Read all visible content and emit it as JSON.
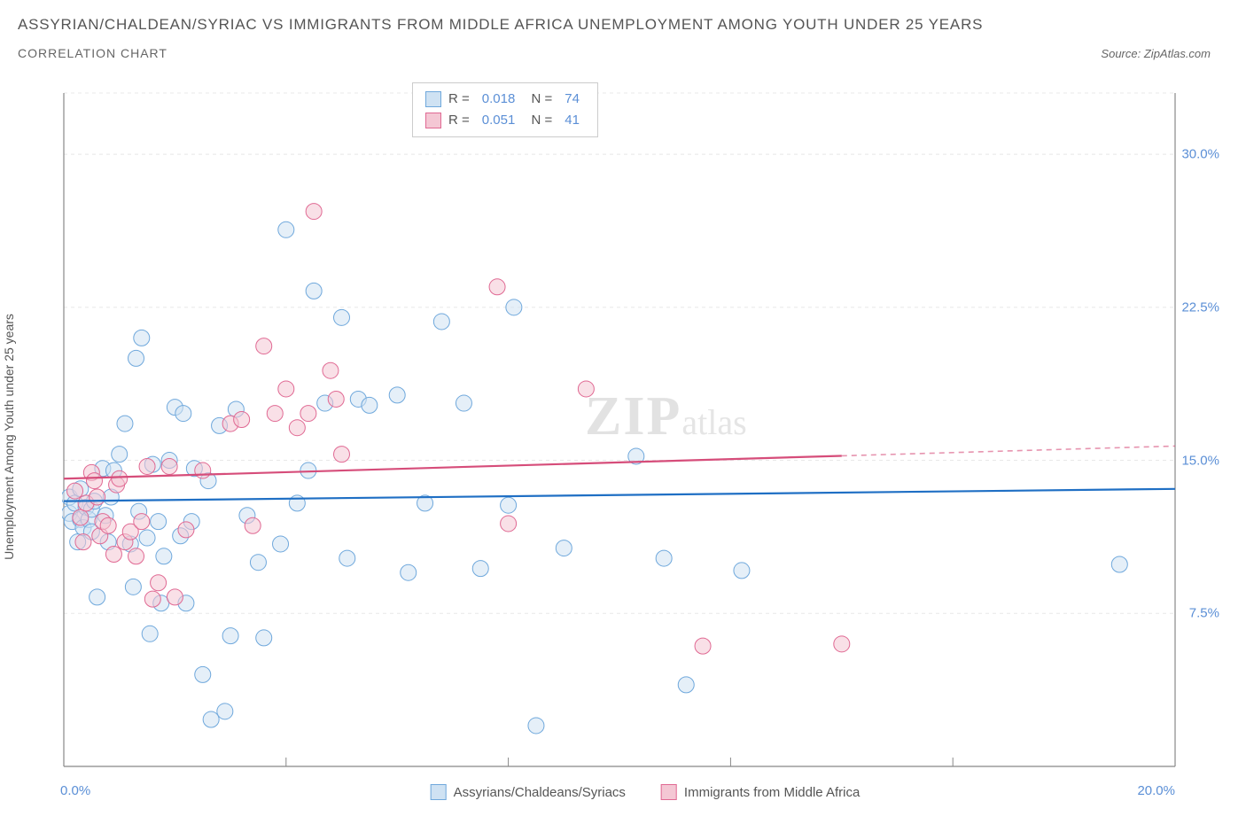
{
  "header": {
    "title": "ASSYRIAN/CHALDEAN/SYRIAC VS IMMIGRANTS FROM MIDDLE AFRICA UNEMPLOYMENT AMONG YOUTH UNDER 25 YEARS",
    "subtitle": "CORRELATION CHART",
    "source_label": "Source:",
    "source_value": "ZipAtlas.com"
  },
  "chart": {
    "type": "scatter",
    "y_axis_label": "Unemployment Among Youth under 25 years",
    "xlim": [
      0,
      20
    ],
    "ylim": [
      0,
      33
    ],
    "x_ticks": [
      {
        "pos": 0,
        "label": "0.0%"
      },
      {
        "pos": 20,
        "label": "20.0%"
      }
    ],
    "x_minor_ticks": [
      4,
      8,
      12,
      16
    ],
    "y_ticks": [
      {
        "pos": 7.5,
        "label": "7.5%"
      },
      {
        "pos": 15,
        "label": "15.0%"
      },
      {
        "pos": 22.5,
        "label": "22.5%"
      },
      {
        "pos": 30,
        "label": "30.0%"
      }
    ],
    "background_color": "#ffffff",
    "grid_color": "#e8e8e8",
    "axis_color": "#888888",
    "marker_radius": 9,
    "marker_stroke_width": 1,
    "series": [
      {
        "name": "Assyrians/Chaldeans/Syriacs",
        "fill": "#cfe2f3",
        "fill_opacity": 0.55,
        "stroke": "#6fa8dc",
        "line_color": "#1f6fc4",
        "R": "0.018",
        "N": "74",
        "trend": {
          "x1": 0,
          "y1": 13.0,
          "x2": 20,
          "y2": 13.6,
          "solid_to_x": 20
        },
        "points": [
          [
            0.1,
            13.2
          ],
          [
            0.1,
            12.4
          ],
          [
            0.15,
            12.0
          ],
          [
            0.2,
            12.9
          ],
          [
            0.25,
            11.0
          ],
          [
            0.3,
            12.1
          ],
          [
            0.3,
            13.6
          ],
          [
            0.35,
            11.7
          ],
          [
            0.4,
            12.7
          ],
          [
            0.45,
            12.1
          ],
          [
            0.5,
            11.5
          ],
          [
            0.5,
            12.6
          ],
          [
            0.55,
            13.0
          ],
          [
            0.6,
            8.3
          ],
          [
            0.7,
            14.6
          ],
          [
            0.75,
            12.3
          ],
          [
            0.8,
            11.0
          ],
          [
            0.85,
            13.2
          ],
          [
            0.9,
            14.5
          ],
          [
            1.0,
            15.3
          ],
          [
            1.1,
            16.8
          ],
          [
            1.2,
            10.9
          ],
          [
            1.25,
            8.8
          ],
          [
            1.3,
            20.0
          ],
          [
            1.35,
            12.5
          ],
          [
            1.4,
            21.0
          ],
          [
            1.5,
            11.2
          ],
          [
            1.55,
            6.5
          ],
          [
            1.6,
            14.8
          ],
          [
            1.7,
            12.0
          ],
          [
            1.75,
            8.0
          ],
          [
            1.8,
            10.3
          ],
          [
            1.9,
            15.0
          ],
          [
            2.0,
            17.6
          ],
          [
            2.1,
            11.3
          ],
          [
            2.15,
            17.3
          ],
          [
            2.2,
            8.0
          ],
          [
            2.3,
            12.0
          ],
          [
            2.35,
            14.6
          ],
          [
            2.5,
            4.5
          ],
          [
            2.6,
            14.0
          ],
          [
            2.65,
            2.3
          ],
          [
            2.8,
            16.7
          ],
          [
            2.9,
            2.7
          ],
          [
            3.0,
            6.4
          ],
          [
            3.1,
            17.5
          ],
          [
            3.3,
            12.3
          ],
          [
            3.5,
            10.0
          ],
          [
            3.6,
            6.3
          ],
          [
            3.9,
            10.9
          ],
          [
            4.0,
            26.3
          ],
          [
            4.2,
            12.9
          ],
          [
            4.4,
            14.5
          ],
          [
            4.5,
            23.3
          ],
          [
            4.7,
            17.8
          ],
          [
            5.0,
            22.0
          ],
          [
            5.1,
            10.2
          ],
          [
            5.3,
            18.0
          ],
          [
            5.5,
            17.7
          ],
          [
            6.0,
            18.2
          ],
          [
            6.2,
            9.5
          ],
          [
            6.5,
            12.9
          ],
          [
            6.8,
            21.8
          ],
          [
            7.2,
            17.8
          ],
          [
            7.5,
            9.7
          ],
          [
            8.0,
            12.8
          ],
          [
            8.1,
            22.5
          ],
          [
            8.5,
            2.0
          ],
          [
            9.0,
            10.7
          ],
          [
            10.3,
            15.2
          ],
          [
            10.8,
            10.2
          ],
          [
            11.2,
            4.0
          ],
          [
            12.2,
            9.6
          ],
          [
            19.0,
            9.9
          ]
        ]
      },
      {
        "name": "Immigrants from Middle Africa",
        "fill": "#f4c7d4",
        "fill_opacity": 0.55,
        "stroke": "#e06993",
        "line_color": "#d64d7a",
        "R": "0.051",
        "N": "41",
        "trend": {
          "x1": 0,
          "y1": 14.1,
          "x2": 20,
          "y2": 15.7,
          "solid_to_x": 14
        },
        "points": [
          [
            0.2,
            13.5
          ],
          [
            0.3,
            12.2
          ],
          [
            0.35,
            11.0
          ],
          [
            0.4,
            12.9
          ],
          [
            0.5,
            14.4
          ],
          [
            0.55,
            14.0
          ],
          [
            0.6,
            13.2
          ],
          [
            0.65,
            11.3
          ],
          [
            0.7,
            12.0
          ],
          [
            0.8,
            11.8
          ],
          [
            0.9,
            10.4
          ],
          [
            0.95,
            13.8
          ],
          [
            1.0,
            14.1
          ],
          [
            1.1,
            11.0
          ],
          [
            1.2,
            11.5
          ],
          [
            1.3,
            10.3
          ],
          [
            1.4,
            12.0
          ],
          [
            1.5,
            14.7
          ],
          [
            1.6,
            8.2
          ],
          [
            1.7,
            9.0
          ],
          [
            1.9,
            14.7
          ],
          [
            2.0,
            8.3
          ],
          [
            2.2,
            11.6
          ],
          [
            2.5,
            14.5
          ],
          [
            3.0,
            16.8
          ],
          [
            3.2,
            17.0
          ],
          [
            3.4,
            11.8
          ],
          [
            3.6,
            20.6
          ],
          [
            3.8,
            17.3
          ],
          [
            4.0,
            18.5
          ],
          [
            4.2,
            16.6
          ],
          [
            4.4,
            17.3
          ],
          [
            4.5,
            27.2
          ],
          [
            4.8,
            19.4
          ],
          [
            4.9,
            18.0
          ],
          [
            5.0,
            15.3
          ],
          [
            7.8,
            23.5
          ],
          [
            8.0,
            11.9
          ],
          [
            9.4,
            18.5
          ],
          [
            11.5,
            5.9
          ],
          [
            14.0,
            6.0
          ]
        ]
      }
    ],
    "watermark": {
      "zip": "ZIP",
      "atlas": "atlas"
    }
  },
  "bottom_legend": {
    "item1": "Assyrians/Chaldeans/Syriacs",
    "item2": "Immigrants from Middle Africa"
  }
}
